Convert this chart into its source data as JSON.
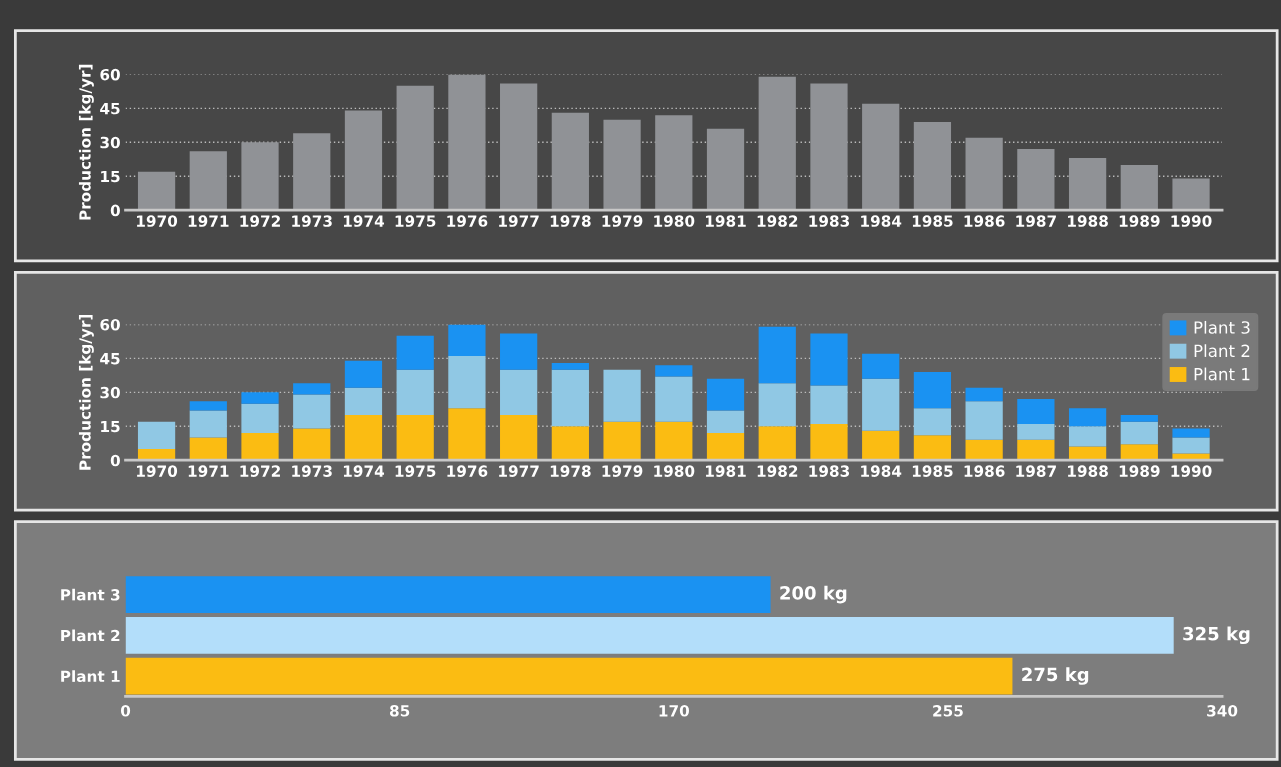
{
  "chart_data": [
    {
      "type": "bar",
      "ylabel": "Production [kg/yr]",
      "categories": [
        "1970",
        "1971",
        "1972",
        "1973",
        "1974",
        "1975",
        "1976",
        "1977",
        "1978",
        "1979",
        "1980",
        "1981",
        "1982",
        "1983",
        "1984",
        "1985",
        "1986",
        "1987",
        "1988",
        "1989",
        "1990"
      ],
      "values": [
        17,
        26,
        30,
        34,
        44,
        55,
        60,
        56,
        43,
        40,
        42,
        36,
        59,
        56,
        47,
        39,
        32,
        27,
        23,
        20,
        14
      ],
      "color": "#909296",
      "ylim": [
        0,
        60
      ],
      "yticks": [
        0,
        15,
        30,
        45,
        60
      ],
      "grid": "y"
    },
    {
      "type": "bar",
      "ylabel": "Production [kg/yr]",
      "stacked": true,
      "categories": [
        "1970",
        "1971",
        "1972",
        "1973",
        "1974",
        "1975",
        "1976",
        "1977",
        "1978",
        "1979",
        "1980",
        "1981",
        "1982",
        "1983",
        "1984",
        "1985",
        "1986",
        "1987",
        "1988",
        "1989",
        "1990"
      ],
      "series": [
        {
          "name": "Plant 1",
          "color": "#fbbc12",
          "values": [
            5,
            10,
            12,
            14,
            20,
            20,
            23,
            20,
            15,
            17,
            17,
            12,
            15,
            16,
            13,
            11,
            9,
            9,
            6,
            7,
            3
          ]
        },
        {
          "name": "Plant 2",
          "color": "#90c8e4",
          "values": [
            12,
            12,
            13,
            15,
            12,
            20,
            23,
            20,
            25,
            23,
            20,
            10,
            19,
            17,
            23,
            12,
            17,
            7,
            9,
            10,
            7
          ]
        },
        {
          "name": "Plant 3",
          "color": "#1a92f2",
          "values": [
            0,
            4,
            5,
            5,
            12,
            15,
            14,
            16,
            3,
            0,
            5,
            14,
            25,
            23,
            11,
            16,
            6,
            11,
            8,
            3,
            4
          ]
        }
      ],
      "ylim": [
        0,
        60
      ],
      "yticks": [
        0,
        15,
        30,
        45,
        60
      ],
      "grid": "y",
      "legend": "top right"
    },
    {
      "type": "bar",
      "orientation": "horizontal",
      "categories": [
        "Plant 3",
        "Plant 2",
        "Plant 1"
      ],
      "values": [
        200,
        325,
        275
      ],
      "colors": [
        "#1a92f2",
        "#b3defa",
        "#fbbc12"
      ],
      "value_labels": [
        "200 kg",
        "325 kg",
        "275 kg"
      ],
      "xlim": [
        0,
        340
      ],
      "xticks": [
        0,
        85,
        170,
        255,
        340
      ]
    }
  ]
}
